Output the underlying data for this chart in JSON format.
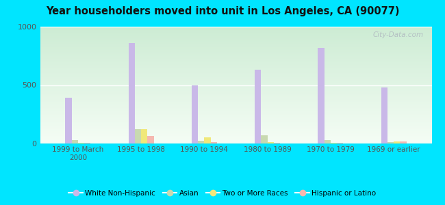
{
  "title": "Year householders moved into unit in Los Angeles, CA (90077)",
  "categories": [
    "1999 to March\n2000",
    "1995 to 1998",
    "1990 to 1994",
    "1980 to 1989",
    "1970 to 1979",
    "1969 or earlier"
  ],
  "series": {
    "White Non-Hispanic": [
      390,
      860,
      500,
      630,
      820,
      480
    ],
    "Asian": [
      30,
      120,
      25,
      70,
      30,
      10
    ],
    "Two or More Races": [
      5,
      120,
      50,
      10,
      5,
      20
    ],
    "Hispanic or Latino": [
      8,
      65,
      10,
      5,
      5,
      20
    ]
  },
  "colors": {
    "White Non-Hispanic": "#c9b8e8",
    "Asian": "#c8d9b0",
    "Two or More Races": "#f0e87a",
    "Hispanic or Latino": "#f5b8b0"
  },
  "ylim": [
    0,
    1000
  ],
  "yticks": [
    0,
    500,
    1000
  ],
  "outer_bg": "#00e5ff",
  "watermark": "City-Data.com",
  "bar_width": 0.1
}
